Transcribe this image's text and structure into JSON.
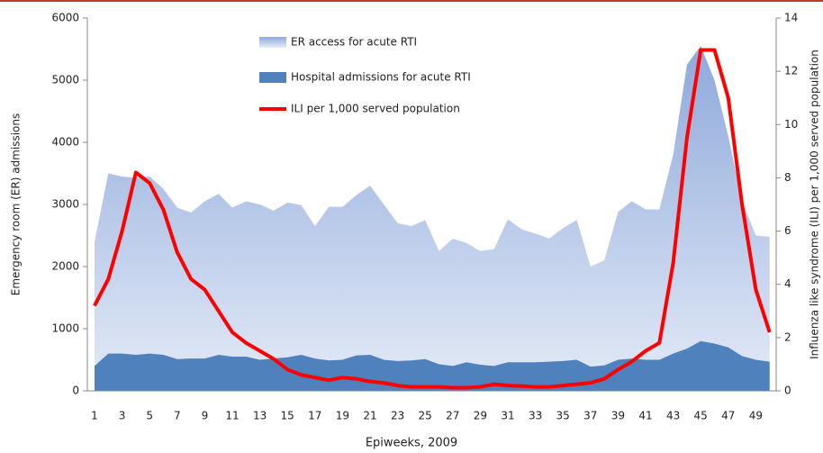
{
  "chart_data": {
    "type": "area-line",
    "x_label": "Epiweeks, 2009",
    "y_label": "Emergency room (ER) admissions",
    "y2_label": "Influenza like syndrome (ILI) per 1,000 served population",
    "categories": [
      "1",
      null,
      "3",
      null,
      "5",
      null,
      "7",
      null,
      "9",
      null,
      "11",
      null,
      "13",
      null,
      "15",
      null,
      "17",
      null,
      "19",
      null,
      "21",
      null,
      "23",
      null,
      "25",
      null,
      "27",
      null,
      "29",
      null,
      "31",
      null,
      "33",
      null,
      "35",
      null,
      "37",
      null,
      "39",
      null,
      "41",
      null,
      "43",
      null,
      "45",
      null,
      "47",
      null,
      "49",
      null
    ],
    "ylim": [
      0,
      6000
    ],
    "yticks": [
      0,
      1000,
      2000,
      3000,
      4000,
      5000,
      6000
    ],
    "y2lim": [
      0,
      14
    ],
    "y2ticks": [
      0,
      2,
      4,
      6,
      8,
      10,
      12,
      14
    ],
    "series": [
      {
        "name": "ER access for acute RTI",
        "kind": "area",
        "color": "#a9bfe4",
        "values": [
          2400,
          3500,
          3450,
          3430,
          3450,
          3250,
          2950,
          2870,
          3050,
          3170,
          2950,
          3050,
          3000,
          2900,
          3030,
          2990,
          2650,
          2960,
          2960,
          3150,
          3300,
          3000,
          2700,
          2650,
          2750,
          2250,
          2450,
          2380,
          2250,
          2280,
          2760,
          2600,
          2530,
          2450,
          2620,
          2750,
          2000,
          2100,
          2880,
          3050,
          2920,
          2920,
          3800,
          5250,
          5550,
          5000,
          4100,
          3050,
          2500,
          2480
        ]
      },
      {
        "name": "Hospital admissions for acute RTI",
        "kind": "area",
        "color": "#4f81bd",
        "values": [
          400,
          600,
          600,
          580,
          600,
          580,
          510,
          520,
          520,
          580,
          550,
          550,
          500,
          520,
          540,
          580,
          520,
          490,
          500,
          570,
          580,
          500,
          480,
          490,
          510,
          430,
          400,
          460,
          420,
          400,
          460,
          460,
          460,
          470,
          480,
          500,
          390,
          410,
          500,
          520,
          500,
          500,
          600,
          680,
          800,
          760,
          700,
          560,
          500,
          470
        ]
      },
      {
        "name": "ILI per 1,000 served population",
        "kind": "line",
        "axis": "y2",
        "color": "#ff0000",
        "values": [
          3.2,
          4.2,
          6,
          8.2,
          7.8,
          6.8,
          5.2,
          4.2,
          3.8,
          3,
          2.2,
          1.8,
          1.5,
          1.2,
          0.8,
          0.6,
          0.5,
          0.4,
          0.5,
          0.45,
          0.35,
          0.3,
          0.2,
          0.15,
          0.15,
          0.15,
          0.12,
          0.12,
          0.15,
          0.25,
          0.2,
          0.18,
          0.15,
          0.15,
          0.2,
          0.25,
          0.3,
          0.45,
          0.8,
          1.1,
          1.5,
          1.8,
          4.8,
          9.5,
          12.8,
          12.8,
          11,
          7,
          3.8,
          2.2
        ]
      }
    ]
  }
}
